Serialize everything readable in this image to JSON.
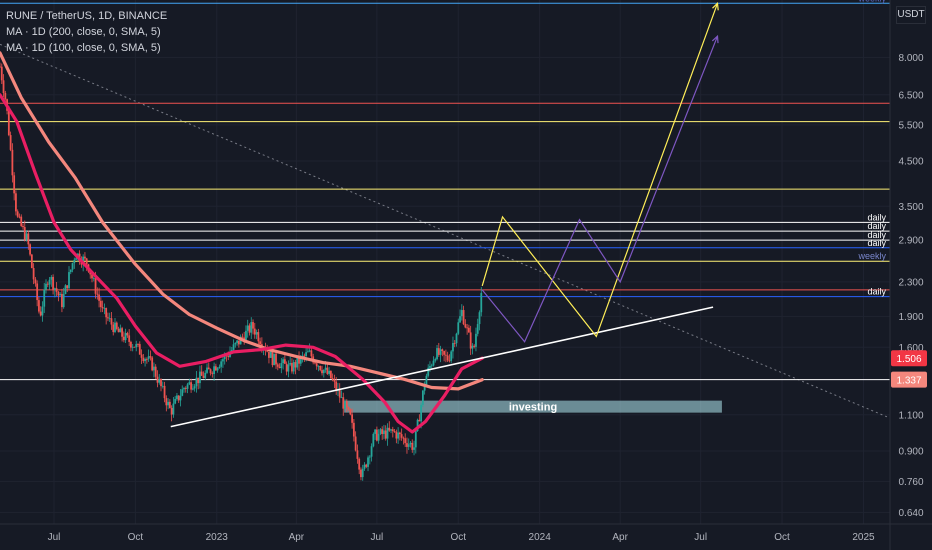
{
  "header": {
    "symbol_line": "RUNE / TetherUS, 1D, BINANCE",
    "ma200_label": "MA · 1D (200, close, 0, SMA, 5)",
    "ma100_label": "MA · 1D (100, close, 0, SMA, 5)",
    "currency_label": "USDT"
  },
  "colors": {
    "background": "#161a25",
    "ma200": "#f4877d",
    "ma100": "#e91e63",
    "white_line": "#ffffff",
    "yellow_line": "#fff176",
    "blue_level": "#2962ff",
    "red_level": "#ef5350",
    "path_yellow": "#ffee58",
    "path_purple": "#7e57c2",
    "candle_up": "#26a69a",
    "candle_down": "#ef5350"
  },
  "chart_data": {
    "type": "candlestick",
    "title": "RUNE / TetherUS, 1D, BINANCE",
    "y_scale": "log",
    "ylim": [
      0.6,
      11.0
    ],
    "y_ticks": [
      8.0,
      6.5,
      5.5,
      4.5,
      3.5,
      2.9,
      2.3,
      1.9,
      1.6,
      1.1,
      0.9,
      0.76,
      0.64
    ],
    "y_tick_labels": [
      "8.000",
      "6.500",
      "5.500",
      "4.500",
      "3.500",
      "2.900",
      "2.300",
      "1.900",
      "1.600",
      "1.100",
      "0.900",
      "0.760",
      "0.640"
    ],
    "x_range": [
      "2022-05-01",
      "2025-01-31"
    ],
    "x_ticks": [
      {
        "date": "2022-07-01",
        "label": "Jul"
      },
      {
        "date": "2022-10-01",
        "label": "Oct"
      },
      {
        "date": "2023-01-01",
        "label": "2023"
      },
      {
        "date": "2023-04-01",
        "label": "Apr"
      },
      {
        "date": "2023-07-01",
        "label": "Jul"
      },
      {
        "date": "2023-10-01",
        "label": "Oct"
      },
      {
        "date": "2024-01-01",
        "label": "2024"
      },
      {
        "date": "2024-04-01",
        "label": "Apr"
      },
      {
        "date": "2024-07-01",
        "label": "Jul"
      },
      {
        "date": "2024-10-01",
        "label": "Oct"
      },
      {
        "date": "2025-01-01",
        "label": "2025"
      }
    ],
    "price_path": [
      [
        "2022-05-01",
        7.6
      ],
      [
        "2022-05-08",
        6.2
      ],
      [
        "2022-05-20",
        3.3
      ],
      [
        "2022-06-01",
        2.9
      ],
      [
        "2022-06-15",
        1.9
      ],
      [
        "2022-06-25",
        2.4
      ],
      [
        "2022-07-10",
        2.05
      ],
      [
        "2022-07-25",
        2.7
      ],
      [
        "2022-08-08",
        2.55
      ],
      [
        "2022-08-25",
        1.95
      ],
      [
        "2022-09-10",
        1.75
      ],
      [
        "2022-09-30",
        1.62
      ],
      [
        "2022-10-20",
        1.45
      ],
      [
        "2022-11-10",
        1.12
      ],
      [
        "2022-11-25",
        1.28
      ],
      [
        "2022-12-20",
        1.38
      ],
      [
        "2023-01-15",
        1.55
      ],
      [
        "2023-02-10",
        1.8
      ],
      [
        "2023-03-05",
        1.5
      ],
      [
        "2023-03-25",
        1.42
      ],
      [
        "2023-04-15",
        1.55
      ],
      [
        "2023-05-10",
        1.35
      ],
      [
        "2023-06-01",
        1.08
      ],
      [
        "2023-06-14",
        0.78
      ],
      [
        "2023-06-28",
        0.98
      ],
      [
        "2023-07-20",
        1.0
      ],
      [
        "2023-08-12",
        0.92
      ],
      [
        "2023-08-25",
        1.35
      ],
      [
        "2023-09-05",
        1.55
      ],
      [
        "2023-09-20",
        1.5
      ],
      [
        "2023-10-05",
        1.95
      ],
      [
        "2023-10-18",
        1.55
      ],
      [
        "2023-10-28",
        2.25
      ]
    ],
    "series": [
      {
        "name": "MA · 1D (200, close, 0, SMA, 5)",
        "color": "#f4877d",
        "points": [
          [
            "2022-05-01",
            8.2
          ],
          [
            "2022-05-25",
            6.4
          ],
          [
            "2022-06-25",
            5.0
          ],
          [
            "2022-07-25",
            4.1
          ],
          [
            "2022-08-25",
            3.2
          ],
          [
            "2022-09-30",
            2.55
          ],
          [
            "2022-11-01",
            2.15
          ],
          [
            "2022-12-01",
            1.92
          ],
          [
            "2023-01-01",
            1.78
          ],
          [
            "2023-02-01",
            1.66
          ],
          [
            "2023-03-01",
            1.58
          ],
          [
            "2023-04-01",
            1.52
          ],
          [
            "2023-05-01",
            1.47
          ],
          [
            "2023-06-01",
            1.44
          ],
          [
            "2023-07-01",
            1.39
          ],
          [
            "2023-08-01",
            1.34
          ],
          [
            "2023-09-01",
            1.28
          ],
          [
            "2023-10-01",
            1.27
          ],
          [
            "2023-10-28",
            1.337
          ]
        ]
      },
      {
        "name": "MA · 1D (100, close, 0, SMA, 5)",
        "color": "#e91e63",
        "points": [
          [
            "2022-05-01",
            6.5
          ],
          [
            "2022-05-20",
            5.6
          ],
          [
            "2022-06-10",
            4.2
          ],
          [
            "2022-07-01",
            3.2
          ],
          [
            "2022-07-20",
            2.75
          ],
          [
            "2022-08-15",
            2.4
          ],
          [
            "2022-09-10",
            2.1
          ],
          [
            "2022-10-01",
            1.8
          ],
          [
            "2022-10-25",
            1.55
          ],
          [
            "2022-11-20",
            1.44
          ],
          [
            "2022-12-20",
            1.48
          ],
          [
            "2023-01-20",
            1.56
          ],
          [
            "2023-02-20",
            1.58
          ],
          [
            "2023-03-20",
            1.62
          ],
          [
            "2023-04-20",
            1.6
          ],
          [
            "2023-05-15",
            1.52
          ],
          [
            "2023-06-15",
            1.34
          ],
          [
            "2023-07-10",
            1.18
          ],
          [
            "2023-07-25",
            1.06
          ],
          [
            "2023-08-10",
            1.0
          ],
          [
            "2023-08-25",
            1.06
          ],
          [
            "2023-09-15",
            1.22
          ],
          [
            "2023-10-05",
            1.42
          ],
          [
            "2023-10-28",
            1.506
          ]
        ]
      }
    ],
    "horizontal_levels": [
      {
        "value": 10.8,
        "color": "#42a5f5",
        "label": "weekly"
      },
      {
        "value": 6.2,
        "color": "#ef5350",
        "label": ""
      },
      {
        "value": 5.6,
        "color": "#fff176",
        "label": ""
      },
      {
        "value": 3.85,
        "color": "#fff176",
        "label": ""
      },
      {
        "value": 3.2,
        "color": "#ffffff",
        "label": "daily"
      },
      {
        "value": 3.05,
        "color": "#ffffff",
        "label": "daily"
      },
      {
        "value": 2.9,
        "color": "#ffffff",
        "label": "daily"
      },
      {
        "value": 2.78,
        "color": "#2962ff",
        "label": "daily"
      },
      {
        "value": 2.58,
        "color": "#fff176",
        "label": "weekly"
      },
      {
        "value": 2.12,
        "color": "#2962ff",
        "label": "daily"
      },
      {
        "value": 2.2,
        "color": "#ef5350",
        "label": ""
      },
      {
        "value": 1.337,
        "color": "#ffffff",
        "label": ""
      }
    ],
    "trendline": {
      "from": [
        "2022-11-10",
        1.03
      ],
      "to": [
        "2024-07-15",
        2.0
      ],
      "color": "#ffffff"
    },
    "dotted_trendline": {
      "from": [
        "2022-05-01",
        8.6
      ],
      "to": [
        "2025-01-31",
        1.08
      ],
      "color": "#787b86"
    },
    "projection_paths": [
      {
        "color": "#ffee58",
        "points": [
          [
            "2023-10-28",
            2.25
          ],
          [
            "2023-11-20",
            3.3
          ],
          [
            "2024-03-05",
            1.7
          ],
          [
            "2024-07-20",
            10.8
          ]
        ]
      },
      {
        "color": "#7e57c2",
        "points": [
          [
            "2023-10-28",
            2.2
          ],
          [
            "2023-12-15",
            1.65
          ],
          [
            "2024-02-15",
            3.25
          ],
          [
            "2024-04-01",
            2.3
          ],
          [
            "2024-07-20",
            9.0
          ]
        ]
      }
    ],
    "zone": {
      "from": [
        "2023-05-25",
        1.13
      ],
      "to": [
        "2024-07-25",
        1.19
      ],
      "label": "investing",
      "color": "#b2ebf2"
    },
    "price_labels": [
      {
        "value": 1.506,
        "text": "1.506",
        "color": "#f23645"
      },
      {
        "value": 1.337,
        "text": "1.337",
        "color": "#f4877d"
      }
    ]
  }
}
